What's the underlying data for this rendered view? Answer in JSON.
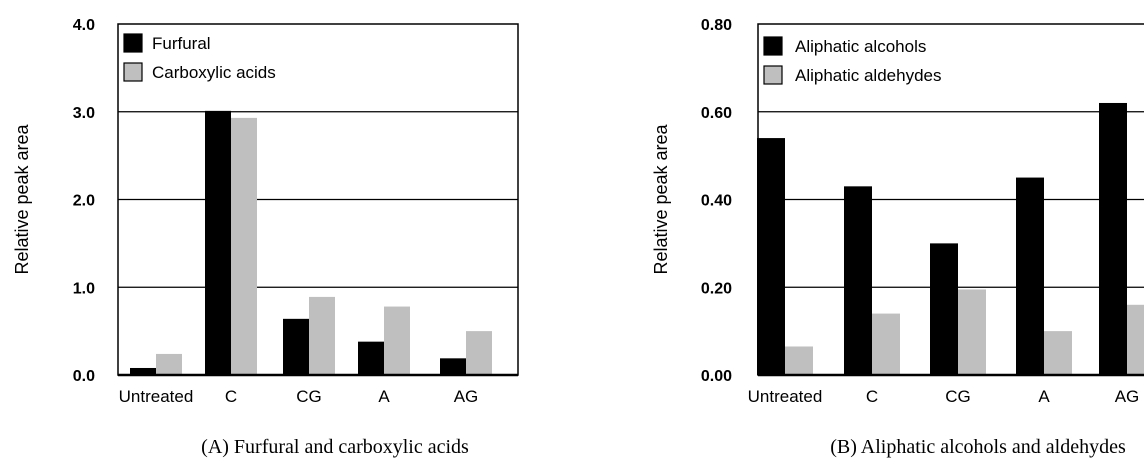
{
  "chart_data": [
    {
      "type": "bar",
      "caption": "(A) Furfural and carboxylic acids",
      "ylabel": "Relative peak area",
      "ylim": [
        0,
        4.0
      ],
      "yticks": [
        "0.0",
        "1.0",
        "2.0",
        "3.0",
        "4.0"
      ],
      "ytick_values": [
        0,
        1,
        2,
        3,
        4
      ],
      "grid": "horizontal",
      "legend_position": "top-left",
      "categories": [
        "Untreated",
        "C",
        "CG",
        "A",
        "AG"
      ],
      "series": [
        {
          "name": "Furfural",
          "color": "#000000",
          "values": [
            0.08,
            3.01,
            0.64,
            0.38,
            0.19
          ]
        },
        {
          "name": "Carboxylic acids",
          "color": "#bfbfbf",
          "values": [
            0.24,
            2.93,
            0.89,
            0.78,
            0.5
          ]
        }
      ]
    },
    {
      "type": "bar",
      "caption": "(B) Aliphatic alcohols and aldehydes",
      "ylabel": "Relative peak area",
      "ylim": [
        0,
        0.8
      ],
      "yticks": [
        "0.00",
        "0.20",
        "0.40",
        "0.60",
        "0.80"
      ],
      "ytick_values": [
        0,
        0.2,
        0.4,
        0.6,
        0.8
      ],
      "grid": "horizontal",
      "legend_position": "top-left",
      "categories": [
        "Untreated",
        "C",
        "CG",
        "A",
        "AG"
      ],
      "series": [
        {
          "name": "Aliphatic alcohols",
          "color": "#000000",
          "values": [
            0.54,
            0.43,
            0.3,
            0.45,
            0.62
          ]
        },
        {
          "name": "Aliphatic aldehydes",
          "color": "#bfbfbf",
          "values": [
            0.065,
            0.14,
            0.195,
            0.1,
            0.16
          ]
        }
      ]
    }
  ]
}
